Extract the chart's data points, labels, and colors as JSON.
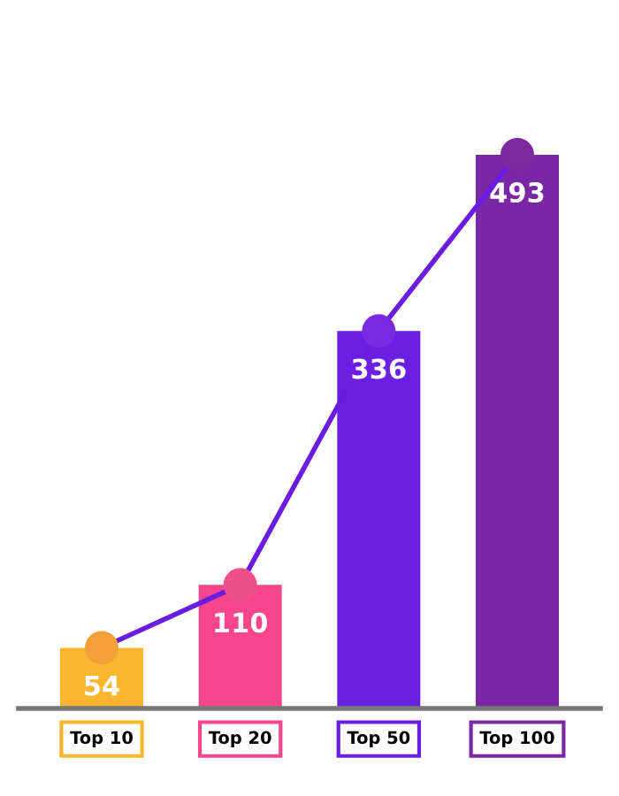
{
  "chart_data": {
    "type": "bar",
    "categories": [
      "Top 10",
      "Top 20",
      "Top 50",
      "Top 100"
    ],
    "series": [
      {
        "colors": [
          "#fbb630",
          "#f8458c",
          "#6a1fe2",
          "#7a27a6"
        ],
        "values": [
          54,
          110,
          336,
          493
        ],
        "value_labels": [
          "54",
          "110",
          "336",
          "493"
        ]
      },
      {
        "type": "line",
        "color": "#6a1de0",
        "colors": [
          "#f4a03a",
          "#f0508a",
          "#7a2ae0",
          "#7b2aa0"
        ],
        "marker": "circle",
        "values": [
          54,
          110,
          336,
          493
        ]
      }
    ]
  }
}
